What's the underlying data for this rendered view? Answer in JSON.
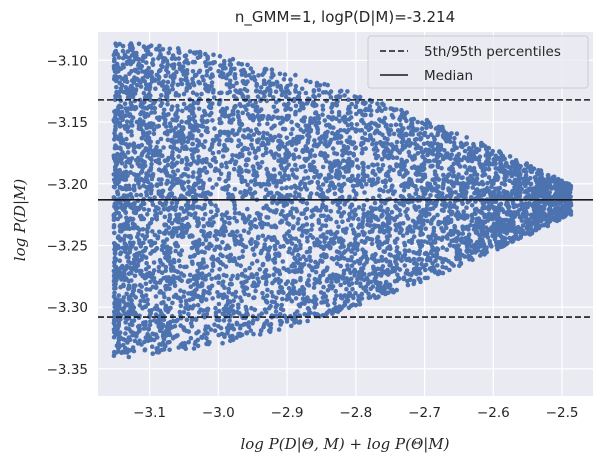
{
  "chart_data": {
    "type": "scatter",
    "title": "n_GMM=1, logP(D|M)=-3.214",
    "xlabel": "log P(D|Θ, M) + log P(Θ|M)",
    "ylabel": "log P(D|M)",
    "xlim": [
      -3.175,
      -2.455
    ],
    "ylim": [
      -3.372,
      -3.077
    ],
    "xticks": [
      -3.1,
      -3.0,
      -2.9,
      -2.8,
      -2.7,
      -2.6,
      -2.5
    ],
    "xtick_labels": [
      "−3.1",
      "−3.0",
      "−2.9",
      "−2.8",
      "−2.7",
      "−2.6",
      "−2.5"
    ],
    "yticks": [
      -3.1,
      -3.15,
      -3.2,
      -3.25,
      -3.3,
      -3.35
    ],
    "ytick_labels": [
      "−3.10",
      "−3.15",
      "−3.20",
      "−3.25",
      "−3.30",
      "−3.35"
    ],
    "grid": true,
    "scatter_color": "#4c72b0",
    "scatter_distribution": {
      "n_points": 6000,
      "x_min": -3.152,
      "x_max": -2.487,
      "center_y": -3.213,
      "half_spread_at_x_min": 0.128,
      "half_spread_at_x_max": 0.012
    },
    "hlines": [
      {
        "name": "5th/95th percentiles",
        "y": -3.132,
        "style": "dashed"
      },
      {
        "name": "Median",
        "y": -3.213,
        "style": "solid"
      },
      {
        "name": "5th/95th percentiles",
        "y": -3.308,
        "style": "dashed"
      }
    ],
    "legend": {
      "position": "top-right",
      "entries": [
        {
          "label": "5th/95th percentiles",
          "style": "dashed"
        },
        {
          "label": "Median",
          "style": "solid"
        }
      ]
    }
  }
}
